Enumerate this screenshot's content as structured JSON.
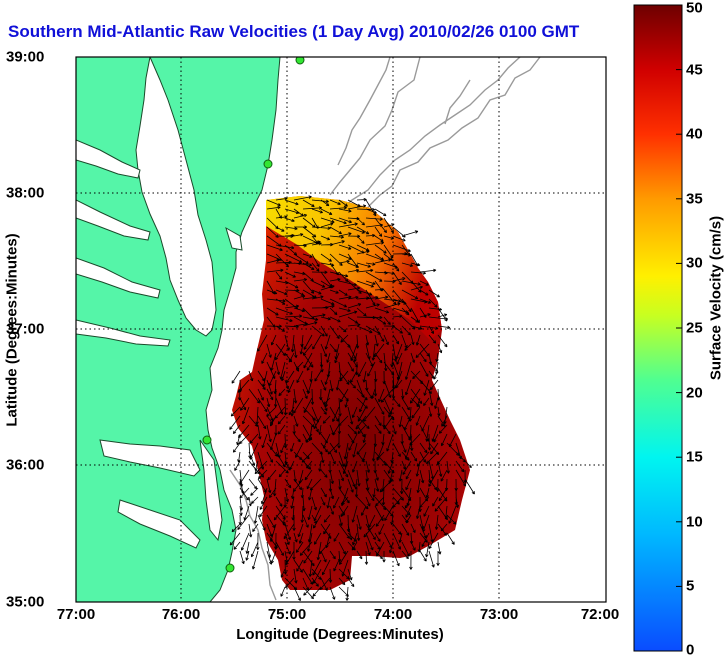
{
  "title": "Southern Mid-Atlantic Raw Velocities (1 Day Avg) 2010/02/26 0100 GMT",
  "axes": {
    "xlabel": "Longitude (Degrees:Minutes)",
    "ylabel": "Latitude (Degrees:Minutes)",
    "x_ticks": [
      "77:00",
      "76:00",
      "75:00",
      "74:00",
      "73:00",
      "72:00"
    ],
    "y_ticks": [
      "39:00",
      "38:00",
      "37:00",
      "36:00",
      "35:00"
    ]
  },
  "colorbar": {
    "label": "Surface Velocity (cm/s)",
    "ticks": [
      "50",
      "45",
      "40",
      "35",
      "30",
      "25",
      "20",
      "15",
      "10",
      "5",
      "0"
    ],
    "range": [
      0,
      50
    ],
    "colors": [
      "#0a4cff",
      "#00b8ff",
      "#00f5f0",
      "#50ff90",
      "#c8ff20",
      "#fff000",
      "#ff9a00",
      "#ff3000",
      "#d00000",
      "#6e0000"
    ]
  },
  "colors": {
    "land": "#55f5a8",
    "coast": "#1a4a2a",
    "bathymetry": "#9a9a9a",
    "grid": "#000000",
    "vectors": "#000000"
  },
  "map_extent": {
    "lon": [
      -77,
      -72
    ],
    "lat": [
      35,
      39
    ]
  }
}
